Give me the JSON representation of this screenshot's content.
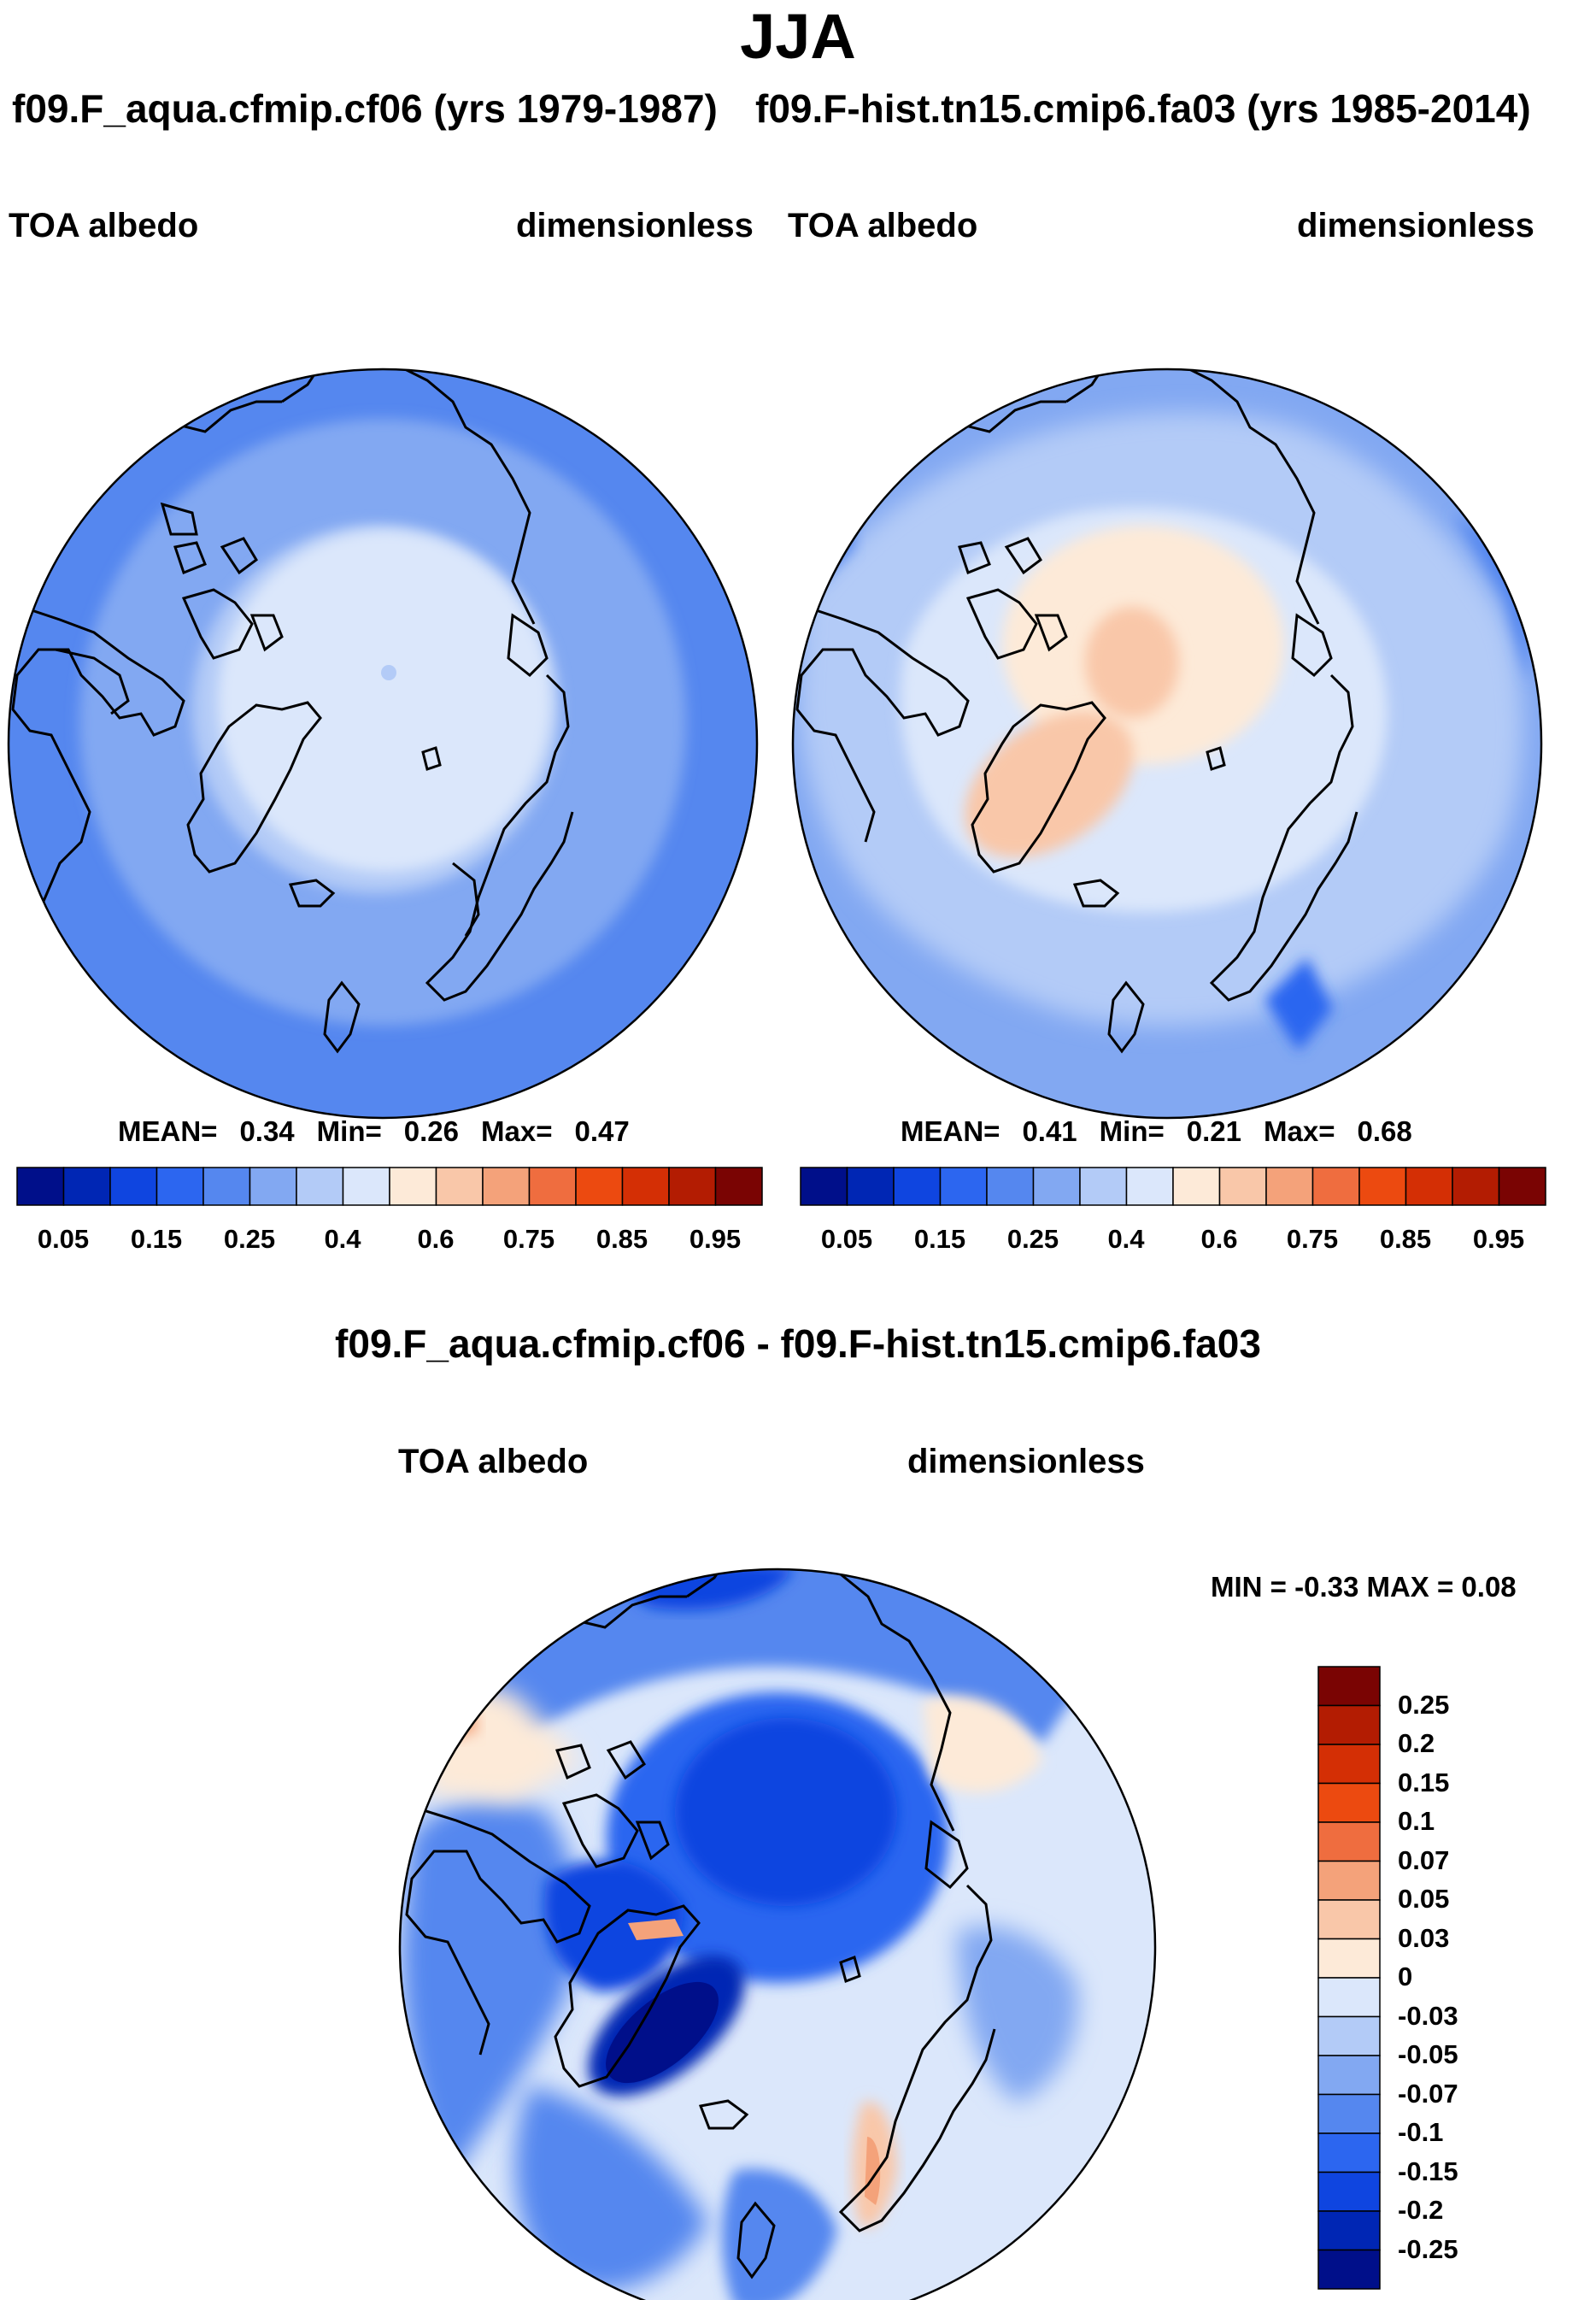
{
  "header": {
    "season": "JJA",
    "case_left": "f09.F_aqua.cfmip.cf06 (yrs 1979-1987)",
    "case_right": "f09.F-hist.tn15.cmip6.fa03 (yrs 1985-2014)",
    "diff_title": "f09.F_aqua.cfmip.cf06 - f09.F-hist.tn15.cmip6.fa03"
  },
  "chart_data": [
    {
      "type": "heatmap",
      "title": "f09.F_aqua.cfmip.cf06 (yrs 1979-1987)",
      "variable": "TOA albedo",
      "units": "dimensionless",
      "projection": "north polar stereographic",
      "stats": {
        "mean_label": "MEAN=",
        "mean": "0.34",
        "min_label": "Min=",
        "min": "0.26",
        "max_label": "Max=",
        "max": "0.47"
      },
      "colorbar": {
        "orientation": "horizontal",
        "tick_labels": [
          "0.05",
          "0.15",
          "0.25",
          "0.4",
          "0.6",
          "0.75",
          "0.85",
          "0.95"
        ],
        "colors": [
          "#000f8a",
          "#0026b4",
          "#0f45e0",
          "#2c66f0",
          "#5587ef",
          "#82a8f2",
          "#b3cbf7",
          "#dbe7fb",
          "#fdead8",
          "#f9c7a9",
          "#f4a27a",
          "#ef6d3f",
          "#ec4a10",
          "#d42f05",
          "#b31c02",
          "#7a0403"
        ]
      }
    },
    {
      "type": "heatmap",
      "title": "f09.F-hist.tn15.cmip6.fa03 (yrs 1985-2014)",
      "variable": "TOA albedo",
      "units": "dimensionless",
      "projection": "north polar stereographic",
      "stats": {
        "mean_label": "MEAN=",
        "mean": "0.41",
        "min_label": "Min=",
        "min": "0.21",
        "max_label": "Max=",
        "max": "0.68"
      },
      "colorbar": {
        "orientation": "horizontal",
        "tick_labels": [
          "0.05",
          "0.15",
          "0.25",
          "0.4",
          "0.6",
          "0.75",
          "0.85",
          "0.95"
        ],
        "colors": [
          "#000f8a",
          "#0026b4",
          "#0f45e0",
          "#2c66f0",
          "#5587ef",
          "#82a8f2",
          "#b3cbf7",
          "#dbe7fb",
          "#fdead8",
          "#f9c7a9",
          "#f4a27a",
          "#ef6d3f",
          "#ec4a10",
          "#d42f05",
          "#b31c02",
          "#7a0403"
        ]
      }
    },
    {
      "type": "heatmap",
      "title": "f09.F_aqua.cfmip.cf06 - f09.F-hist.tn15.cmip6.fa03",
      "variable": "TOA albedo",
      "units": "dimensionless",
      "projection": "north polar stereographic",
      "minmax_text": "MIN =  -0.33 MAX =   0.08",
      "colorbar": {
        "orientation": "vertical",
        "tick_labels": [
          "0.25",
          "0.2",
          "0.15",
          "0.1",
          "0.07",
          "0.05",
          "0.03",
          "0",
          "-0.03",
          "-0.05",
          "-0.07",
          "-0.1",
          "-0.15",
          "-0.2",
          "-0.25"
        ],
        "colors": [
          "#7a0403",
          "#b31c02",
          "#d42f05",
          "#ec4a10",
          "#ef6d3f",
          "#f4a27a",
          "#f9c7a9",
          "#fdead8",
          "#dbe7fb",
          "#b3cbf7",
          "#82a8f2",
          "#5587ef",
          "#2c66f0",
          "#0f45e0",
          "#0026b4",
          "#000f8a"
        ]
      }
    }
  ]
}
